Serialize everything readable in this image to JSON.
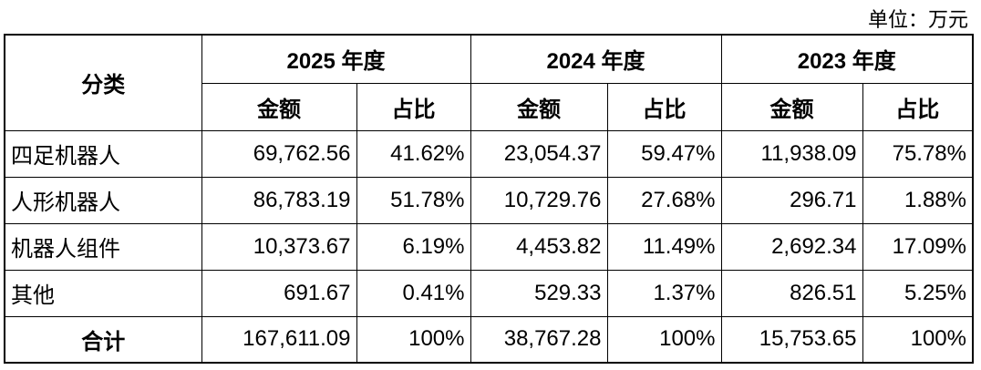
{
  "unit": "单位：万元",
  "table": {
    "header": {
      "category": "分类",
      "years": [
        "2025 年度",
        "2024 年度",
        "2023 年度"
      ],
      "subheaders": [
        "金额",
        "占比",
        "金额",
        "占比",
        "金额",
        "占比"
      ]
    },
    "rows": [
      [
        "四足机器人",
        "69,762.56",
        "41.62%",
        "23,054.37",
        "59.47%",
        "11,938.09",
        "75.78%"
      ],
      [
        "人形机器人",
        "86,783.19",
        "51.78%",
        "10,729.76",
        "27.68%",
        "296.71",
        "1.88%"
      ],
      [
        "机器人组件",
        "10,373.67",
        "6.19%",
        "4,453.82",
        "11.49%",
        "2,692.34",
        "17.09%"
      ],
      [
        "其他",
        "691.67",
        "0.41%",
        "529.33",
        "1.37%",
        "826.51",
        "5.25%"
      ],
      [
        "合计",
        "167,611.09",
        "100%",
        "38,767.28",
        "100%",
        "15,753.65",
        "100%"
      ]
    ]
  }
}
